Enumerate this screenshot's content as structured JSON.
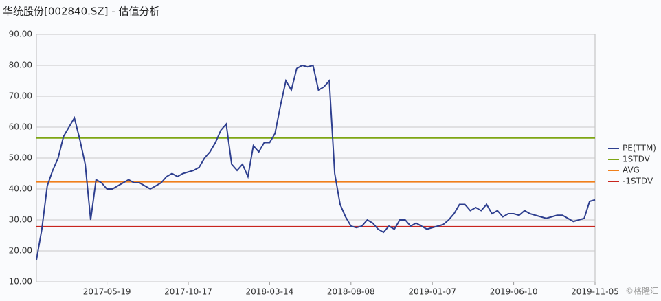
{
  "chart_data": {
    "type": "line",
    "title": "华统股份[002840.SZ] - 估值分析",
    "watermark": "©格隆汇",
    "categories": [
      null,
      null,
      null,
      null,
      null,
      null,
      null,
      null,
      null,
      null,
      null,
      null,
      null,
      "2017-05-19",
      null,
      null,
      null,
      null,
      null,
      null,
      null,
      null,
      null,
      null,
      null,
      null,
      null,
      null,
      "2017-10-17",
      null,
      null,
      null,
      null,
      null,
      null,
      null,
      null,
      null,
      null,
      null,
      null,
      null,
      null,
      "2018-03-14",
      null,
      null,
      null,
      null,
      null,
      null,
      null,
      null,
      null,
      null,
      null,
      null,
      null,
      null,
      "2018-08-08",
      null,
      null,
      null,
      null,
      null,
      null,
      null,
      null,
      null,
      null,
      null,
      null,
      null,
      null,
      "2019-01-07",
      null,
      null,
      null,
      null,
      null,
      null,
      null,
      null,
      null,
      null,
      null,
      null,
      null,
      null,
      "2019-06-10",
      null,
      null,
      null,
      null,
      null,
      null,
      null,
      null,
      null,
      null,
      null,
      null,
      null,
      null,
      "2019-11-05"
    ],
    "series": [
      {
        "name": "PE(TTM)",
        "color": "#2e3f8f",
        "values": [
          17,
          27,
          41,
          46,
          50,
          57,
          60,
          63,
          56,
          48,
          30,
          43,
          42,
          40,
          40,
          41,
          42,
          43,
          42,
          42,
          41,
          40,
          41,
          42,
          44,
          45,
          44,
          45,
          45.5,
          46,
          47,
          50,
          52,
          55,
          59,
          61,
          48,
          46,
          48,
          44,
          54,
          52,
          55,
          55,
          58,
          67,
          75,
          72,
          79,
          80,
          79.5,
          80,
          72,
          73,
          75,
          45,
          35,
          31,
          28,
          27.5,
          28,
          30,
          29,
          27,
          26,
          28,
          27,
          30,
          30,
          28,
          29,
          28,
          27,
          27.5,
          28,
          28.5,
          30,
          32,
          35,
          35,
          33,
          34,
          33,
          35,
          32,
          33,
          31,
          32,
          32,
          31.5,
          33,
          32,
          31.5,
          31,
          30.5,
          31,
          31.5,
          31.5,
          30.5,
          29.5,
          30,
          30.5,
          36,
          36.5
        ]
      }
    ],
    "reference_lines": [
      {
        "name": "1STDV",
        "color": "#7ea614",
        "value": 56.5
      },
      {
        "name": "AVG",
        "color": "#f07f1b",
        "value": 42.3
      },
      {
        "name": "-1STDV",
        "color": "#c8251e",
        "value": 27.8
      }
    ],
    "ylim": [
      10,
      90
    ],
    "yticks": [
      {
        "value": 10,
        "label": "10.00"
      },
      {
        "value": 20,
        "label": "20.00"
      },
      {
        "value": 30,
        "label": "30.00"
      },
      {
        "value": 40,
        "label": "40.00"
      },
      {
        "value": 50,
        "label": "50.00"
      },
      {
        "value": 60,
        "label": "60.00"
      },
      {
        "value": 70,
        "label": "70.00"
      },
      {
        "value": 80,
        "label": "80.00"
      },
      {
        "value": 90,
        "label": "90.00"
      }
    ],
    "grid": true
  }
}
